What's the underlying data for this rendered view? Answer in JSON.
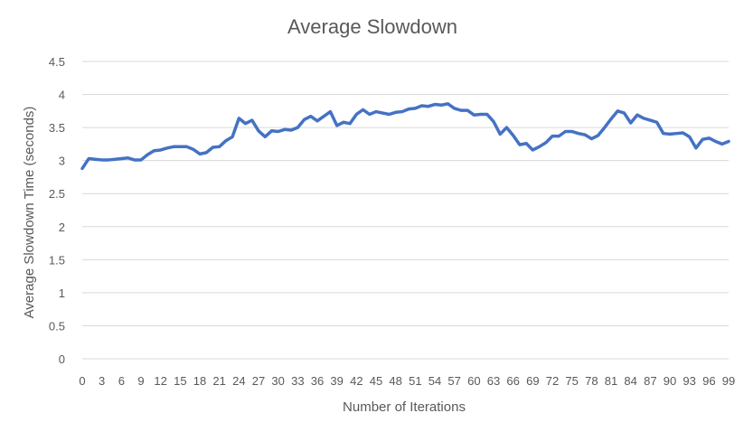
{
  "chart_data": {
    "type": "line",
    "title": "Average Slowdown",
    "xlabel": "Number of Iterations",
    "ylabel": "Average Slowdown Time (seconds)",
    "ylim": [
      0,
      4.5
    ],
    "yticks": [
      "0",
      "0.5",
      "1",
      "1.5",
      "2",
      "2.5",
      "3",
      "3.5",
      "4",
      "4.5"
    ],
    "xtick_labels": [
      "0",
      "3",
      "6",
      "9",
      "12",
      "15",
      "18",
      "21",
      "24",
      "27",
      "30",
      "33",
      "36",
      "39",
      "42",
      "45",
      "48",
      "51",
      "54",
      "57",
      "60",
      "63",
      "66",
      "69",
      "72",
      "75",
      "78",
      "81",
      "84",
      "87",
      "90",
      "93",
      "96",
      "99"
    ],
    "grid": "horizontal",
    "legend": "none",
    "series": [
      {
        "color": "#4472c4",
        "x": [
          0,
          1,
          2,
          3,
          4,
          5,
          6,
          7,
          8,
          9,
          10,
          11,
          12,
          13,
          14,
          15,
          16,
          17,
          18,
          19,
          20,
          21,
          22,
          23,
          24,
          25,
          26,
          27,
          28,
          29,
          30,
          31,
          32,
          33,
          34,
          35,
          36,
          37,
          38,
          39,
          40,
          41,
          42,
          43,
          44,
          45,
          46,
          47,
          48,
          49,
          50,
          51,
          52,
          53,
          54,
          55,
          56,
          57,
          58,
          59,
          60,
          61,
          62,
          63,
          64,
          65,
          66,
          67,
          68,
          69,
          70,
          71,
          72,
          73,
          74,
          75,
          76,
          77,
          78,
          79,
          80,
          81,
          82,
          83,
          84,
          85,
          86,
          87,
          88,
          89,
          90,
          91,
          92,
          93,
          94,
          95,
          96,
          97,
          98,
          99
        ],
        "values": [
          2.88,
          3.03,
          3.02,
          3.01,
          3.01,
          3.02,
          3.03,
          3.04,
          3.01,
          3.01,
          3.09,
          3.15,
          3.16,
          3.19,
          3.21,
          3.21,
          3.21,
          3.17,
          3.1,
          3.12,
          3.2,
          3.21,
          3.3,
          3.36,
          3.64,
          3.56,
          3.61,
          3.45,
          3.36,
          3.45,
          3.44,
          3.47,
          3.46,
          3.5,
          3.62,
          3.67,
          3.6,
          3.67,
          3.74,
          3.53,
          3.58,
          3.56,
          3.7,
          3.77,
          3.7,
          3.74,
          3.72,
          3.7,
          3.73,
          3.74,
          3.78,
          3.79,
          3.83,
          3.82,
          3.85,
          3.84,
          3.86,
          3.79,
          3.76,
          3.76,
          3.69,
          3.7,
          3.7,
          3.59,
          3.4,
          3.5,
          3.38,
          3.24,
          3.26,
          3.16,
          3.21,
          3.27,
          3.37,
          3.37,
          3.44,
          3.44,
          3.41,
          3.39,
          3.33,
          3.38,
          3.5,
          3.63,
          3.75,
          3.72,
          3.57,
          3.69,
          3.64,
          3.61,
          3.58,
          3.41,
          3.4,
          3.41,
          3.42,
          3.36,
          3.19,
          3.32,
          3.34,
          3.29,
          3.25,
          3.29
        ]
      }
    ]
  }
}
